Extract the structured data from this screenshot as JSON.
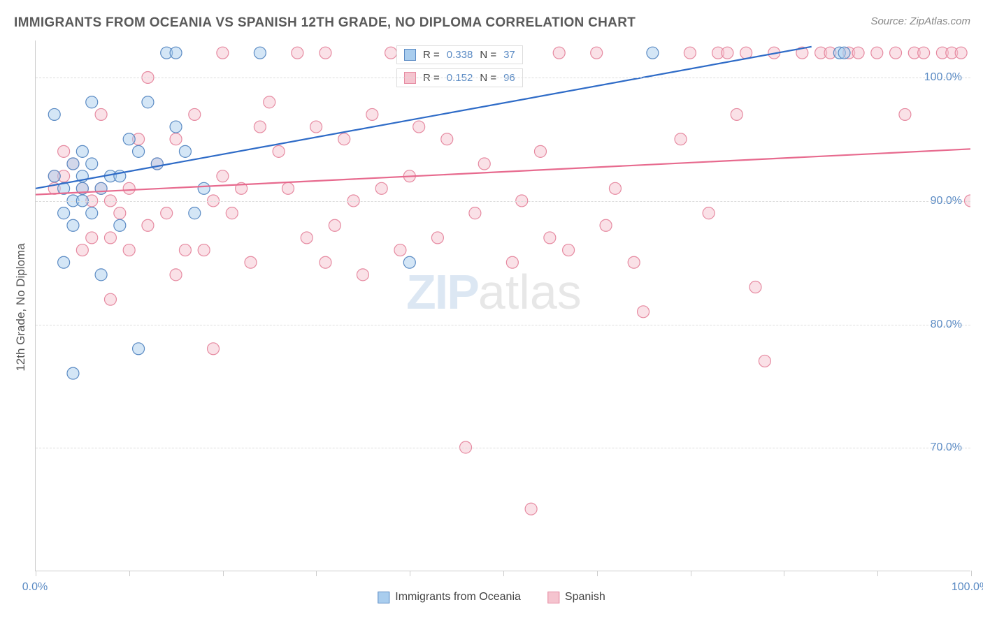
{
  "title": "IMMIGRANTS FROM OCEANIA VS SPANISH 12TH GRADE, NO DIPLOMA CORRELATION CHART",
  "source": "Source: ZipAtlas.com",
  "y_axis_label": "12th Grade, No Diploma",
  "watermark": {
    "part1": "ZIP",
    "part2": "atlas"
  },
  "chart": {
    "type": "scatter",
    "xlim": [
      0,
      100
    ],
    "ylim": [
      60,
      103
    ],
    "x_ticks": [
      0,
      10,
      20,
      30,
      40,
      50,
      60,
      70,
      80,
      90,
      100
    ],
    "x_tick_labels": {
      "0": "0.0%",
      "100": "100.0%"
    },
    "y_ticks": [
      70,
      80,
      90,
      100
    ],
    "y_tick_labels": {
      "70": "70.0%",
      "80": "80.0%",
      "90": "90.0%",
      "100": "100.0%"
    },
    "background_color": "#ffffff",
    "grid_color": "#dddddd",
    "marker_radius": 8.5,
    "marker_opacity": 0.5,
    "series": [
      {
        "name": "Immigrants from Oceania",
        "color_fill": "#a9cdee",
        "color_stroke": "#5b8bc4",
        "R": "0.338",
        "N": "37",
        "trend": {
          "x1": 0,
          "y1": 91.0,
          "x2": 83,
          "y2": 102.5,
          "color": "#2e6bc7",
          "width": 2.2
        },
        "points": [
          [
            2,
            92
          ],
          [
            3,
            91
          ],
          [
            4,
            90
          ],
          [
            4,
            93
          ],
          [
            5,
            91
          ],
          [
            5,
            92
          ],
          [
            5,
            94
          ],
          [
            6,
            89
          ],
          [
            6,
            98
          ],
          [
            7,
            91
          ],
          [
            8,
            92
          ],
          [
            9,
            88
          ],
          [
            10,
            95
          ],
          [
            11,
            94
          ],
          [
            12,
            98
          ],
          [
            14,
            102
          ],
          [
            15,
            102
          ],
          [
            15,
            96
          ],
          [
            16,
            94
          ],
          [
            17,
            89
          ],
          [
            18,
            91
          ],
          [
            3,
            85
          ],
          [
            4,
            76
          ],
          [
            11,
            78
          ],
          [
            7,
            84
          ],
          [
            24,
            102
          ],
          [
            40,
            85
          ],
          [
            66,
            102
          ],
          [
            86,
            102
          ],
          [
            86.5,
            102
          ],
          [
            2,
            97
          ],
          [
            3,
            89
          ],
          [
            4,
            88
          ],
          [
            5,
            90
          ],
          [
            9,
            92
          ],
          [
            13,
            93
          ],
          [
            6,
            93
          ]
        ]
      },
      {
        "name": "Spanish",
        "color_fill": "#f5c4cf",
        "color_stroke": "#e68aa1",
        "R": "0.152",
        "N": "96",
        "trend": {
          "x1": 0,
          "y1": 90.5,
          "x2": 100,
          "y2": 94.2,
          "color": "#e76a8e",
          "width": 2.2
        },
        "points": [
          [
            2,
            91
          ],
          [
            2,
            92
          ],
          [
            3,
            92
          ],
          [
            3,
            94
          ],
          [
            4,
            93
          ],
          [
            5,
            91
          ],
          [
            5,
            86
          ],
          [
            6,
            87
          ],
          [
            6,
            90
          ],
          [
            7,
            91
          ],
          [
            7,
            97
          ],
          [
            8,
            90
          ],
          [
            8,
            87
          ],
          [
            9,
            89
          ],
          [
            10,
            86
          ],
          [
            10,
            91
          ],
          [
            11,
            95
          ],
          [
            12,
            88
          ],
          [
            12,
            100
          ],
          [
            13,
            93
          ],
          [
            14,
            89
          ],
          [
            15,
            84
          ],
          [
            15,
            95
          ],
          [
            16,
            86
          ],
          [
            17,
            97
          ],
          [
            18,
            86
          ],
          [
            19,
            78
          ],
          [
            20,
            92
          ],
          [
            20,
            102
          ],
          [
            21,
            89
          ],
          [
            22,
            91
          ],
          [
            23,
            85
          ],
          [
            24,
            96
          ],
          [
            25,
            98
          ],
          [
            26,
            94
          ],
          [
            27,
            91
          ],
          [
            28,
            102
          ],
          [
            29,
            87
          ],
          [
            30,
            96
          ],
          [
            31,
            102
          ],
          [
            31,
            85
          ],
          [
            32,
            88
          ],
          [
            33,
            95
          ],
          [
            34,
            90
          ],
          [
            35,
            84
          ],
          [
            36,
            97
          ],
          [
            37,
            91
          ],
          [
            38,
            102
          ],
          [
            39,
            86
          ],
          [
            40,
            92
          ],
          [
            41,
            96
          ],
          [
            43,
            87
          ],
          [
            44,
            95
          ],
          [
            45,
            102
          ],
          [
            46,
            70
          ],
          [
            47,
            89
          ],
          [
            48,
            93
          ],
          [
            50,
            102
          ],
          [
            51,
            85
          ],
          [
            52,
            90
          ],
          [
            53,
            65
          ],
          [
            54,
            94
          ],
          [
            55,
            87
          ],
          [
            56,
            102
          ],
          [
            57,
            86
          ],
          [
            60,
            102
          ],
          [
            61,
            88
          ],
          [
            62,
            91
          ],
          [
            64,
            85
          ],
          [
            65,
            81
          ],
          [
            69,
            95
          ],
          [
            70,
            102
          ],
          [
            72,
            89
          ],
          [
            73,
            102
          ],
          [
            74,
            102
          ],
          [
            75,
            97
          ],
          [
            76,
            102
          ],
          [
            77,
            83
          ],
          [
            78,
            77
          ],
          [
            79,
            102
          ],
          [
            82,
            102
          ],
          [
            84,
            102
          ],
          [
            85,
            102
          ],
          [
            87,
            102
          ],
          [
            88,
            102
          ],
          [
            90,
            102
          ],
          [
            92,
            102
          ],
          [
            93,
            97
          ],
          [
            94,
            102
          ],
          [
            95,
            102
          ],
          [
            97,
            102
          ],
          [
            98,
            102
          ],
          [
            99,
            102
          ],
          [
            100,
            90
          ],
          [
            8,
            82
          ],
          [
            19,
            90
          ]
        ]
      }
    ]
  },
  "legend_bottom": [
    {
      "label": "Immigrants from Oceania",
      "fill": "#a9cdee",
      "stroke": "#5b8bc4"
    },
    {
      "label": "Spanish",
      "fill": "#f5c4cf",
      "stroke": "#e68aa1"
    }
  ]
}
